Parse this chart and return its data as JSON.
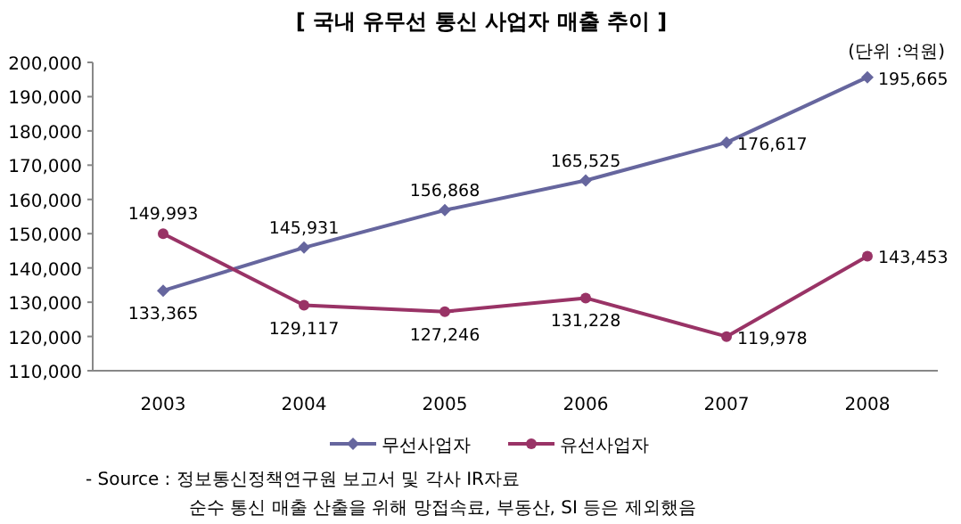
{
  "chart_data": {
    "type": "line",
    "title": "[ 국내 유무선 통신 사업자 매출 추이 ]",
    "annotations": [
      "(단위 :억원)",
      "- Source : 정보통신정책연구원 보고서 및 각사 IR자료",
      "순수 통신 매출 산출을 위해 망접속료, 부동산, SI 등은 제외했음"
    ],
    "categories": [
      "2003",
      "2004",
      "2005",
      "2006",
      "2007",
      "2008"
    ],
    "series": [
      {
        "name": "무선사업자",
        "color": "#66669e",
        "marker": "diamond",
        "values": [
          133365,
          145931,
          156868,
          165525,
          176617,
          195665
        ],
        "value_labels": [
          "133,365",
          "145,931",
          "156,868",
          "165,525",
          "176,617",
          "195,665"
        ]
      },
      {
        "name": "유선사업자",
        "color": "#993366",
        "marker": "circle",
        "values": [
          149993,
          129117,
          127246,
          131228,
          119978,
          143453
        ],
        "value_labels": [
          "149,993",
          "129,117",
          "127,246",
          "131,228",
          "119,978",
          "143,453"
        ]
      }
    ],
    "ylim": [
      110000,
      200000
    ],
    "yticks": [
      {
        "value": 110000,
        "label": "110,000"
      },
      {
        "value": 120000,
        "label": "120,000"
      },
      {
        "value": 130000,
        "label": "130,000"
      },
      {
        "value": 140000,
        "label": "140,000"
      },
      {
        "value": 150000,
        "label": "150,000"
      },
      {
        "value": 160000,
        "label": "160,000"
      },
      {
        "value": 170000,
        "label": "170,000"
      },
      {
        "value": 180000,
        "label": "180,000"
      },
      {
        "value": 190000,
        "label": "190,000"
      },
      {
        "value": 200000,
        "label": "200,000"
      }
    ],
    "legend": "bottom",
    "grid": false
  }
}
